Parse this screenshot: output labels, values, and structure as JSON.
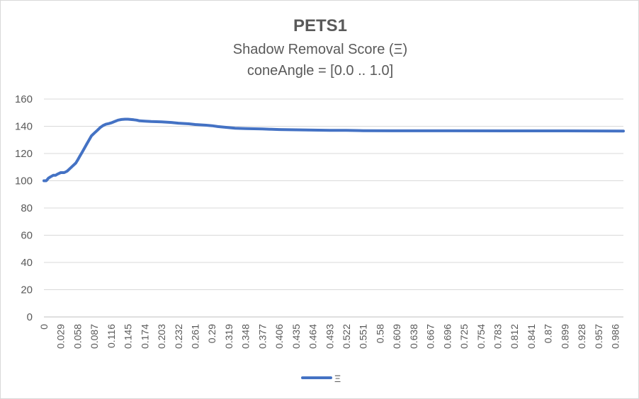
{
  "chart_data": {
    "type": "line",
    "title": "PETS1",
    "subtitle": "Shadow Removal Score (Ξ)",
    "subtitle2": "coneAngle = [0.0 .. 1.0]",
    "xlabel": "",
    "ylabel": "",
    "ylim": [
      0,
      160
    ],
    "yticks": [
      0,
      20,
      40,
      60,
      80,
      100,
      120,
      140,
      160
    ],
    "x_tick_labels": [
      "0",
      "0.029",
      "0.058",
      "0.087",
      "0.116",
      "0.145",
      "0.174",
      "0.203",
      "0.232",
      "0.261",
      "0.29",
      "0.319",
      "0.348",
      "0.377",
      "0.406",
      "0.435",
      "0.464",
      "0.493",
      "0.522",
      "0.551",
      "0.58",
      "0.609",
      "0.638",
      "0.667",
      "0.696",
      "0.725",
      "0.754",
      "0.783",
      "0.812",
      "0.841",
      "0.87",
      "0.899",
      "0.928",
      "0.957",
      "0.986"
    ],
    "grid": true,
    "legend_position": "bottom",
    "series": [
      {
        "name": "Ξ",
        "color": "#4472c4",
        "x": [
          0,
          0.004,
          0.008,
          0.012,
          0.016,
          0.02,
          0.024,
          0.029,
          0.035,
          0.04,
          0.045,
          0.05,
          0.055,
          0.058,
          0.062,
          0.066,
          0.07,
          0.074,
          0.078,
          0.082,
          0.087,
          0.092,
          0.097,
          0.102,
          0.107,
          0.112,
          0.116,
          0.122,
          0.128,
          0.134,
          0.14,
          0.145,
          0.15,
          0.155,
          0.16,
          0.165,
          0.174,
          0.185,
          0.203,
          0.22,
          0.232,
          0.25,
          0.261,
          0.28,
          0.29,
          0.3,
          0.319,
          0.33,
          0.348,
          0.377,
          0.406,
          0.435,
          0.464,
          0.493,
          0.522,
          0.551,
          0.6,
          0.7,
          0.8,
          0.9,
          1.0
        ],
        "values": [
          100,
          100,
          102,
          103,
          104,
          104,
          105,
          106,
          106,
          107,
          109,
          111,
          113,
          115,
          118,
          121,
          124,
          127,
          130,
          133,
          135,
          137,
          139,
          140.5,
          141.5,
          142,
          142.5,
          143.5,
          144.5,
          145,
          145.2,
          145.2,
          145,
          144.8,
          144.5,
          144,
          143.8,
          143.5,
          143.2,
          142.8,
          142.3,
          141.8,
          141.3,
          140.8,
          140.4,
          139.8,
          139,
          138.6,
          138.3,
          138,
          137.6,
          137.4,
          137.2,
          137,
          137,
          136.8,
          136.7,
          136.7,
          136.6,
          136.6,
          136.5
        ]
      }
    ]
  }
}
